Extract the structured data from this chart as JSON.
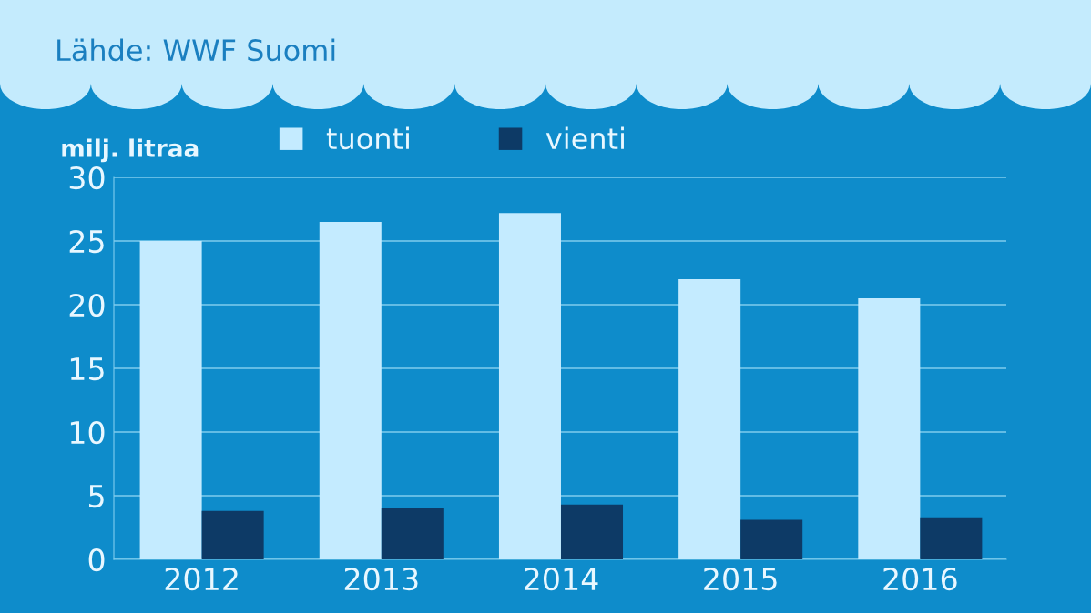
{
  "chart_data": {
    "type": "bar",
    "ylabel": "milj. litraa",
    "annotations": [
      "Lähde: WWF Suomi"
    ],
    "categories": [
      "2012",
      "2013",
      "2014",
      "2015",
      "2016"
    ],
    "series": [
      {
        "name": "tuonti",
        "color": "#c4ebff",
        "values": [
          25.0,
          26.5,
          27.2,
          22.0,
          20.5
        ]
      },
      {
        "name": "vienti",
        "color": "#0d3a66",
        "values": [
          3.8,
          4.0,
          4.3,
          3.1,
          3.3
        ]
      }
    ],
    "ylim": [
      0,
      30
    ],
    "yticks": [
      0,
      5,
      10,
      15,
      20,
      25,
      30
    ],
    "grid": "y",
    "legend": "top"
  }
}
